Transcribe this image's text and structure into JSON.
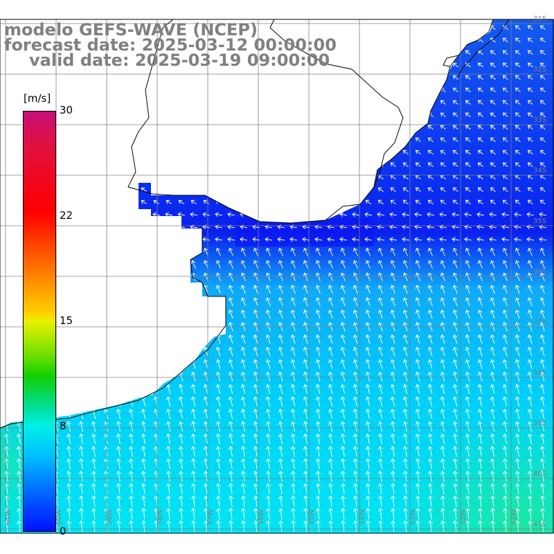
{
  "titles": {
    "line1": "modelo GEFS-WAVE (NCEP)",
    "line2": "forecast date: 2025-03-12 00:00:00",
    "line3": "valid date: 2025-03-19 09:00:00"
  },
  "colorbar": {
    "unit": "[m/s]",
    "min": 0,
    "max": 30,
    "ticks": [
      "30",
      "22",
      "15",
      "8",
      "0"
    ],
    "tick_values": [
      30,
      22,
      15,
      8,
      0
    ]
  },
  "grid": {
    "lon_labels": [
      "61W",
      "60W",
      "59W",
      "58W",
      "57W",
      "56W",
      "55W",
      "54W",
      "53W",
      "52W",
      "51W"
    ],
    "lat_labels": [
      "31S",
      "32S",
      "33S",
      "34S",
      "35S",
      "36S",
      "37S",
      "38S",
      "39S",
      "40S",
      "41S"
    ]
  },
  "colors": {
    "coast": "#000000",
    "grid": "#808080",
    "arrow": "#ffffff",
    "title": "#808080"
  }
}
